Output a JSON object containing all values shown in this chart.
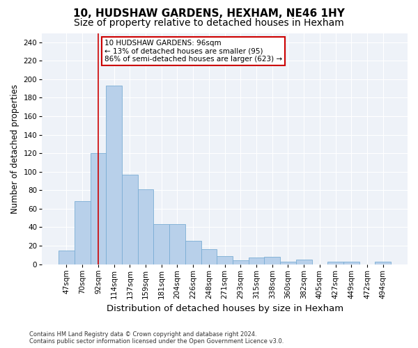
{
  "title1": "10, HUDSHAW GARDENS, HEXHAM, NE46 1HY",
  "title2": "Size of property relative to detached houses in Hexham",
  "xlabel": "Distribution of detached houses by size in Hexham",
  "ylabel": "Number of detached properties",
  "categories": [
    "47sqm",
    "70sqm",
    "92sqm",
    "114sqm",
    "137sqm",
    "159sqm",
    "181sqm",
    "204sqm",
    "226sqm",
    "248sqm",
    "271sqm",
    "293sqm",
    "315sqm",
    "338sqm",
    "360sqm",
    "382sqm",
    "405sqm",
    "427sqm",
    "449sqm",
    "472sqm",
    "494sqm"
  ],
  "values": [
    15,
    68,
    120,
    193,
    97,
    81,
    43,
    43,
    25,
    16,
    9,
    4,
    7,
    8,
    3,
    5,
    0,
    3,
    3,
    0,
    3
  ],
  "bar_color": "#b8d0ea",
  "bar_edge_color": "#7aadd4",
  "vline_x_idx": 2,
  "vline_color": "#cc0000",
  "annotation_line1": "10 HUDSHAW GARDENS: 96sqm",
  "annotation_line2": "← 13% of detached houses are smaller (95)",
  "annotation_line3": "86% of semi-detached houses are larger (623) →",
  "annotation_box_color": "#ffffff",
  "annotation_box_edge": "#cc0000",
  "ylim": [
    0,
    250
  ],
  "yticks": [
    0,
    20,
    40,
    60,
    80,
    100,
    120,
    140,
    160,
    180,
    200,
    220,
    240
  ],
  "background_color": "#eef2f8",
  "title1_fontsize": 11,
  "title2_fontsize": 10,
  "xlabel_fontsize": 9.5,
  "ylabel_fontsize": 8.5,
  "tick_fontsize": 7.5,
  "annot_fontsize": 7.5,
  "footer_text": "Contains HM Land Registry data © Crown copyright and database right 2024.\nContains public sector information licensed under the Open Government Licence v3.0.",
  "footer_fontsize": 6
}
